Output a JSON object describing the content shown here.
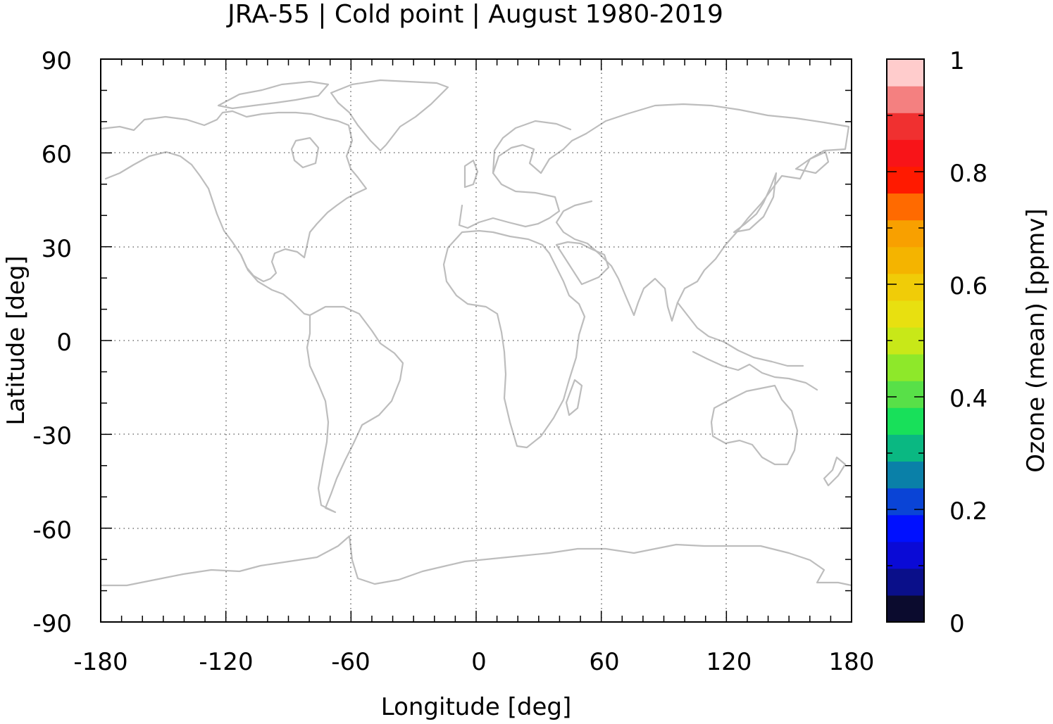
{
  "title": "JRA-55 | Cold point | August 1980-2019",
  "map": {
    "projection": "equirectangular",
    "background": "#ffffff",
    "coastline_color": "#bdbdbd",
    "grid": "dotted"
  },
  "chart_data": {
    "type": "heatmap",
    "title": "JRA-55 | Cold point | August 1980-2019",
    "xlabel": "Longitude [deg]",
    "ylabel": "Latitude [deg]",
    "xlim": [
      -180,
      180
    ],
    "ylim": [
      -90,
      90
    ],
    "x_ticks": [
      -180,
      -120,
      -60,
      0,
      60,
      120,
      180
    ],
    "y_ticks": [
      90,
      60,
      30,
      0,
      -30,
      -60,
      -90
    ],
    "x_tick_labels": [
      "-180",
      "-120",
      "-60",
      "0",
      "60",
      "120",
      "180"
    ],
    "y_tick_labels": [
      "90",
      "60",
      "30",
      "0",
      "-30",
      "-60",
      "-90"
    ],
    "values": [],
    "colorbar": {
      "label": "Ozone (mean) [ppmv]",
      "range": [
        0,
        1
      ],
      "ticks": [
        0,
        0.2,
        0.4,
        0.6,
        0.8,
        1
      ],
      "tick_labels": [
        "0",
        "0.2",
        "0.4",
        "0.6",
        "0.8",
        "1"
      ],
      "levels": 20,
      "colors": [
        "#0b0b2e",
        "#0a0f8a",
        "#0a0ad6",
        "#0010ff",
        "#0a44d6",
        "#0a80a8",
        "#0ab882",
        "#18e05a",
        "#58e048",
        "#8ee82a",
        "#c8e818",
        "#e8e010",
        "#f0cc08",
        "#f4b400",
        "#f8a000",
        "#ff6a00",
        "#ff1a00",
        "#f81418",
        "#f03030",
        "#f48080",
        "#ffcccc"
      ]
    }
  }
}
